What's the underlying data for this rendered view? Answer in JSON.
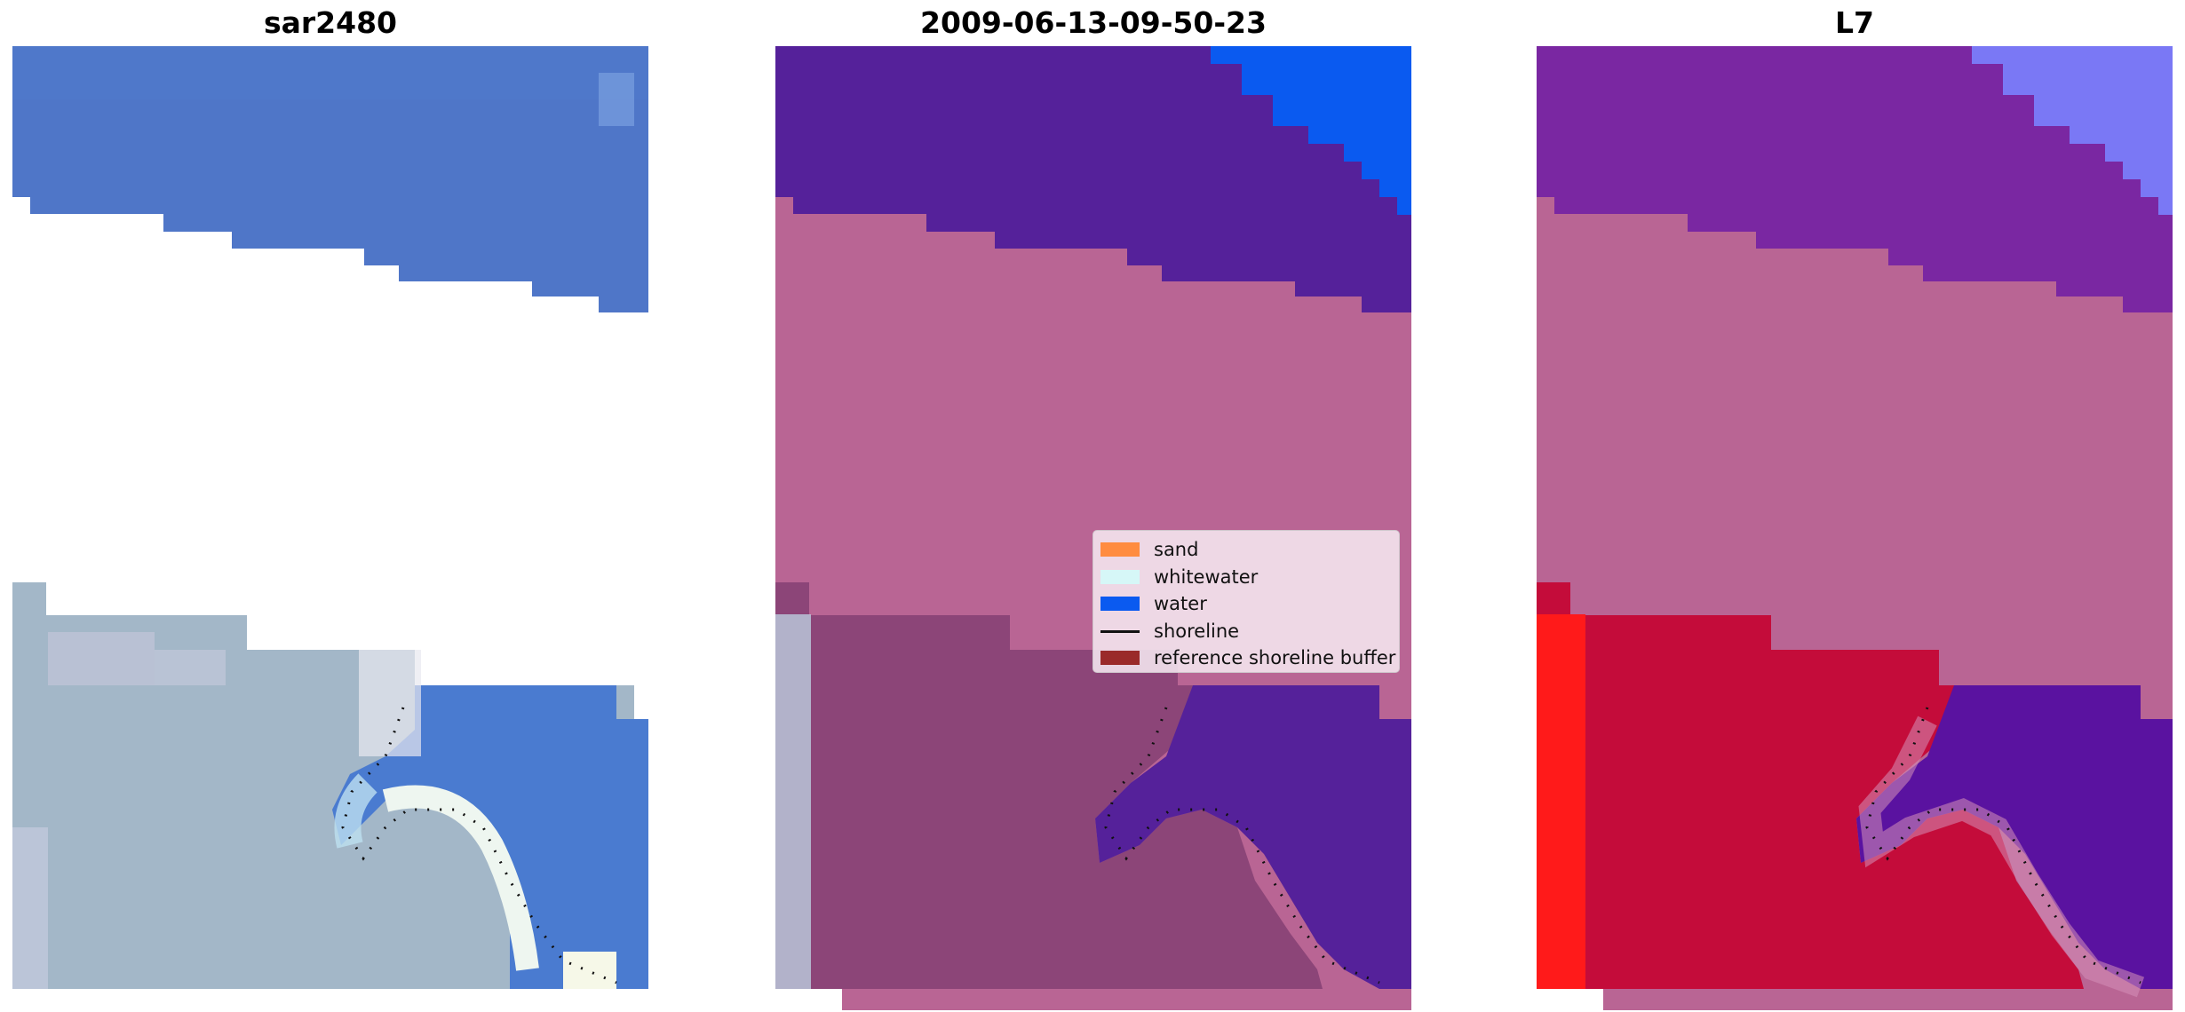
{
  "panels": [
    {
      "title": "sar2480"
    },
    {
      "title": "2009-06-13-09-50-23"
    },
    {
      "title": "L7"
    }
  ],
  "legend": {
    "items": [
      {
        "label": "sand",
        "kind": "patch",
        "color": "#ff8c40"
      },
      {
        "label": "whitewater",
        "kind": "patch",
        "color": "#d6f7f7"
      },
      {
        "label": "water",
        "kind": "patch",
        "color": "#0a5af0"
      },
      {
        "label": "shoreline",
        "kind": "line",
        "color": "#111111"
      },
      {
        "label": "reference shoreline buffer",
        "kind": "patch",
        "color": "#9a2a2a"
      }
    ]
  },
  "colors": {
    "rgb_water": "#4f76c8",
    "rgb_land": "#9fb6c8",
    "class_water_dark": "#55219a",
    "class_water_bright": "#0a5af0",
    "class_buffer": "#b96594",
    "class_land_overlay": "#8c4578",
    "mndwi_top": "#7a27a2",
    "mndwi_red": "#c40c3a",
    "mndwi_bright_red": "#ff1a1a",
    "mndwi_water": "#5a12a0",
    "mndwi_light_blue": "#7a78f5"
  }
}
